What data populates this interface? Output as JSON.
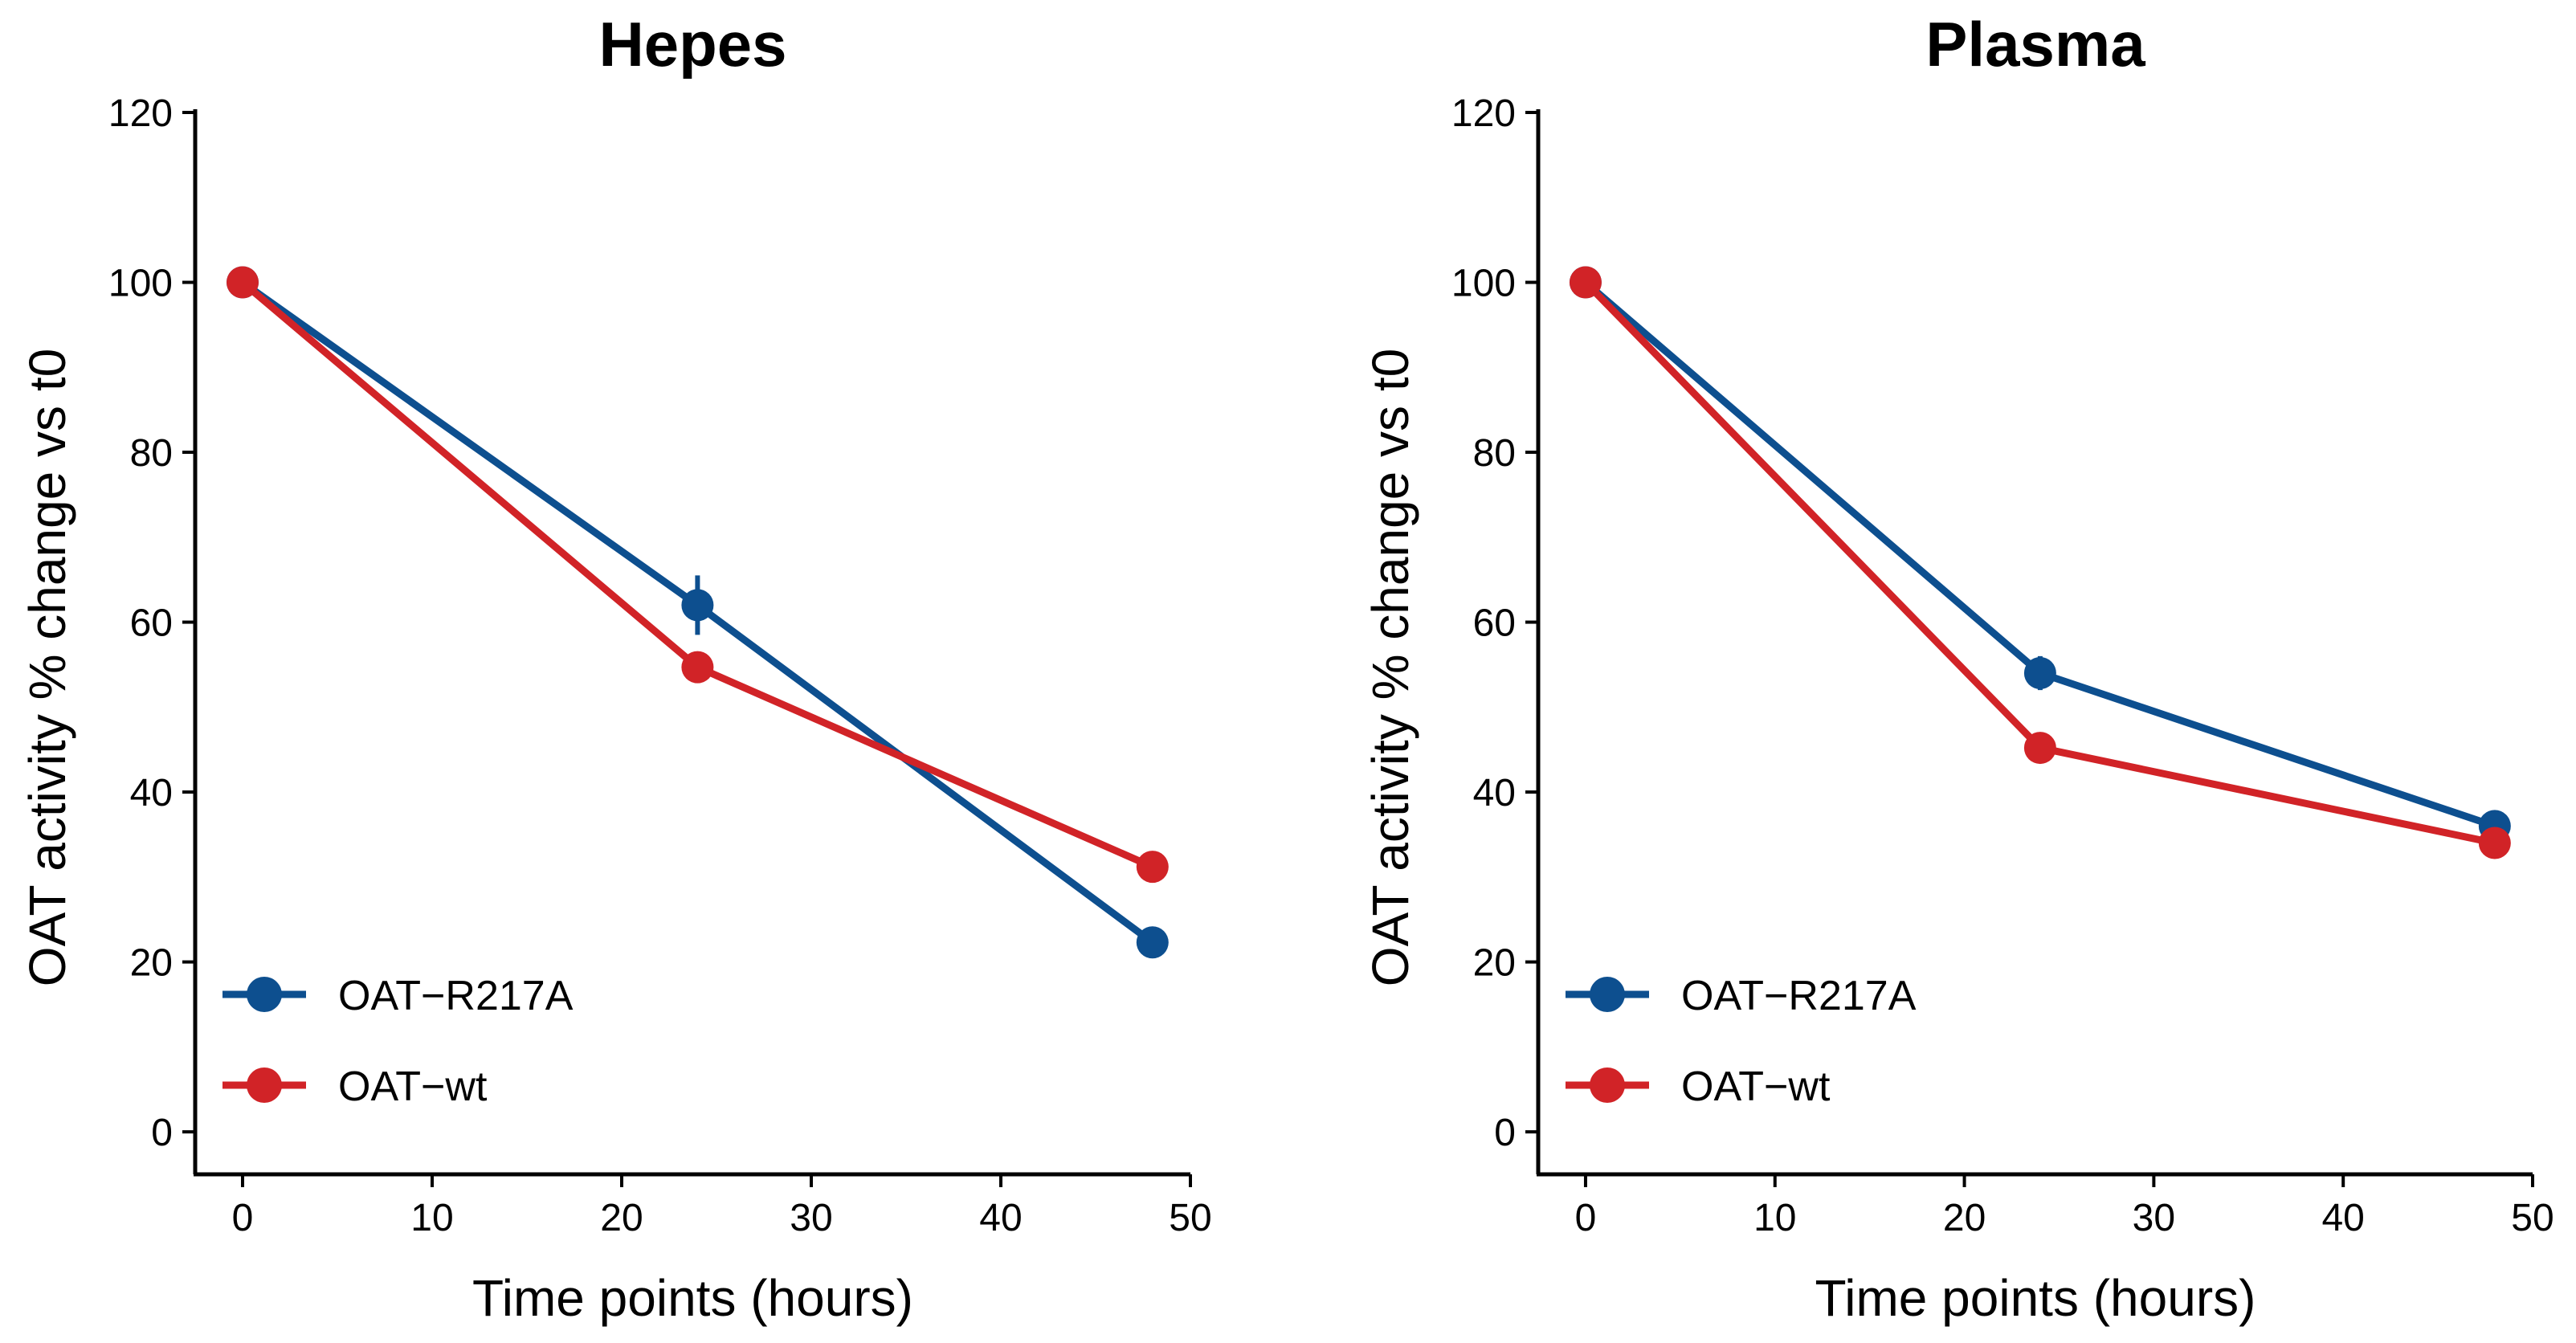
{
  "chart_data": [
    {
      "type": "line",
      "title": "Hepes",
      "xlabel": "Time points (hours)",
      "ylabel": "OAT activity % change vs t0",
      "xlim": [
        -2.5,
        50
      ],
      "ylim": [
        -5,
        120
      ],
      "xticks": [
        0,
        10,
        20,
        30,
        40,
        50
      ],
      "yticks": [
        0,
        20,
        40,
        60,
        80,
        100,
        120
      ],
      "grid": false,
      "legend_position": "bottom-left",
      "series": [
        {
          "name": "OAT−R217A",
          "color": "#0d4f8f",
          "x": [
            0,
            24,
            48
          ],
          "y": [
            100,
            62,
            22.3
          ],
          "err": [
            0,
            3.5,
            0
          ]
        },
        {
          "name": "OAT−wt",
          "color": "#d12327",
          "x": [
            0,
            24,
            48
          ],
          "y": [
            100,
            54.7,
            31.2
          ],
          "err": [
            0,
            0,
            0
          ]
        }
      ]
    },
    {
      "type": "line",
      "title": "Plasma",
      "xlabel": "Time points (hours)",
      "ylabel": "OAT activity % change vs t0",
      "xlim": [
        -2.5,
        50
      ],
      "ylim": [
        -5,
        120
      ],
      "xticks": [
        0,
        10,
        20,
        30,
        40,
        50
      ],
      "yticks": [
        0,
        20,
        40,
        60,
        80,
        100,
        120
      ],
      "grid": false,
      "legend_position": "bottom-left",
      "series": [
        {
          "name": "OAT−R217A",
          "color": "#0d4f8f",
          "x": [
            0,
            24,
            48
          ],
          "y": [
            100,
            54,
            36
          ],
          "err": [
            0,
            2,
            0
          ]
        },
        {
          "name": "OAT−wt",
          "color": "#d12327",
          "x": [
            0,
            24,
            48
          ],
          "y": [
            100,
            45.2,
            34
          ],
          "err": [
            0,
            0,
            0
          ]
        }
      ]
    }
  ]
}
